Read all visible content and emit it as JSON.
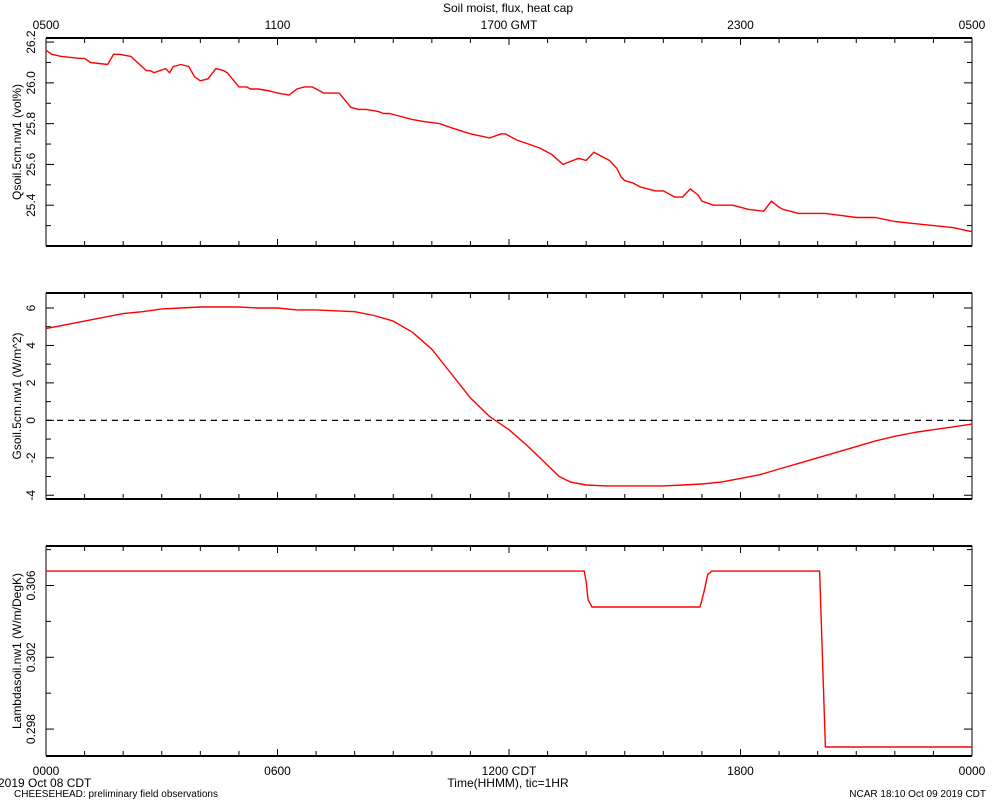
{
  "title": "Soil moist, flux, heat cap",
  "top_axis": {
    "tick_labels": [
      "0500",
      "1100",
      "1700 GMT",
      "2300",
      "0500"
    ]
  },
  "bottom_axis": {
    "tick_labels": [
      "0000",
      "0600",
      "1200 CDT",
      "1800",
      "0000"
    ],
    "xlabel": "Time(HHMM), tic=1HR"
  },
  "footer": {
    "date_left": "2019 Oct 08 CDT",
    "project": "CHEESEHEAD: preliminary field observations",
    "stamp": "NCAR 18:10 Oct 09 2019 CDT"
  },
  "colors": {
    "series": "#ff0000",
    "axis": "#000000",
    "zero_line": "#000000"
  },
  "chart_data": [
    {
      "type": "line",
      "ylabel": "Qsoil.5cm.nw1 (vol%)",
      "ylim": [
        25.2,
        26.22
      ],
      "yticks": [
        25.4,
        25.6,
        25.8,
        26.0,
        26.2
      ],
      "ytick_labels": [
        "25.4",
        "25.6",
        "25.8",
        "26.0",
        "26.2"
      ],
      "xlim_hours": [
        0,
        24
      ],
      "series": [
        {
          "x": [
            0,
            0.15,
            0.4,
            0.9,
            1.0,
            1.15,
            1.6,
            1.75,
            1.9,
            2.2,
            2.6,
            2.7,
            2.8,
            3.1,
            3.2,
            3.3,
            3.5,
            3.7,
            3.85,
            4.0,
            4.2,
            4.4,
            4.6,
            4.7,
            5.0,
            5.2,
            5.3,
            5.4,
            5.5,
            5.8,
            6.0,
            6.3,
            6.5,
            6.7,
            6.9,
            7.2,
            7.6,
            7.9,
            8.1,
            8.3,
            8.6,
            8.75,
            8.9,
            9.1,
            9.5,
            9.8,
            10.2,
            10.5,
            11.0,
            11.5,
            11.8,
            11.9,
            12.2,
            12.5,
            12.8,
            13.1,
            13.4,
            13.8,
            14.0,
            14.2,
            14.6,
            14.8,
            14.9,
            15.0,
            15.2,
            15.4,
            15.6,
            15.8,
            16.0,
            16.3,
            16.5,
            16.7,
            16.9,
            17.0,
            17.3,
            17.8,
            18.2,
            18.6,
            18.8,
            19.0,
            19.1,
            19.3,
            19.5,
            19.8,
            20.2,
            20.6,
            21.0,
            21.5,
            22.0,
            22.5,
            23.0,
            23.5,
            24.0
          ],
          "y": [
            26.16,
            26.14,
            26.13,
            26.12,
            26.12,
            26.1,
            26.09,
            26.14,
            26.14,
            26.13,
            26.06,
            26.06,
            26.05,
            26.07,
            26.05,
            26.08,
            26.09,
            26.08,
            26.03,
            26.01,
            26.02,
            26.07,
            26.06,
            26.05,
            25.98,
            25.98,
            25.97,
            25.97,
            25.97,
            25.96,
            25.95,
            25.94,
            25.97,
            25.98,
            25.98,
            25.95,
            25.95,
            25.88,
            25.87,
            25.87,
            25.86,
            25.85,
            25.85,
            25.84,
            25.82,
            25.81,
            25.8,
            25.78,
            25.75,
            25.73,
            25.75,
            25.75,
            25.72,
            25.7,
            25.68,
            25.65,
            25.6,
            25.63,
            25.62,
            25.66,
            25.62,
            25.58,
            25.54,
            25.52,
            25.51,
            25.49,
            25.48,
            25.47,
            25.47,
            25.44,
            25.44,
            25.48,
            25.45,
            25.42,
            25.4,
            25.4,
            25.38,
            25.37,
            25.42,
            25.39,
            25.38,
            25.37,
            25.36,
            25.36,
            25.36,
            25.35,
            25.34,
            25.34,
            25.32,
            25.31,
            25.3,
            25.29,
            25.27
          ]
        }
      ]
    },
    {
      "type": "line",
      "ylabel": "Gsoil.5cm.nw1 (W/m^2)",
      "ylim": [
        -4.2,
        6.8
      ],
      "yticks": [
        -4,
        -2,
        0,
        2,
        4,
        6
      ],
      "ytick_labels": [
        "-4",
        "-2",
        "0",
        "2",
        "4",
        "6"
      ],
      "reference_line": {
        "y": 0,
        "style": "dashed"
      },
      "xlim_hours": [
        0,
        24
      ],
      "series": [
        {
          "x": [
            0,
            0.5,
            1.0,
            1.5,
            2.0,
            2.5,
            3.0,
            3.5,
            4.0,
            4.5,
            5.0,
            5.5,
            6.0,
            6.5,
            7.0,
            7.5,
            8.0,
            8.5,
            9.0,
            9.5,
            10.0,
            10.5,
            11.0,
            11.5,
            12.0,
            12.5,
            13.0,
            13.3,
            13.6,
            14.0,
            14.5,
            15.0,
            15.5,
            16.0,
            16.5,
            17.0,
            17.5,
            18.0,
            18.5,
            19.0,
            19.5,
            20.0,
            20.5,
            21.0,
            21.5,
            22.0,
            22.5,
            23.0,
            23.5,
            24.0
          ],
          "y": [
            4.9,
            5.1,
            5.3,
            5.5,
            5.7,
            5.8,
            5.95,
            6.0,
            6.05,
            6.05,
            6.05,
            6.0,
            6.0,
            5.9,
            5.9,
            5.85,
            5.8,
            5.6,
            5.3,
            4.7,
            3.8,
            2.5,
            1.2,
            0.2,
            -0.5,
            -1.4,
            -2.4,
            -3.0,
            -3.3,
            -3.45,
            -3.5,
            -3.5,
            -3.5,
            -3.5,
            -3.45,
            -3.4,
            -3.3,
            -3.1,
            -2.9,
            -2.6,
            -2.3,
            -2.0,
            -1.7,
            -1.4,
            -1.1,
            -0.85,
            -0.65,
            -0.5,
            -0.35,
            -0.2
          ]
        }
      ]
    },
    {
      "type": "line",
      "ylabel": "Lambdasoil.nw1 (W/m/DegK)",
      "ylim": [
        0.2965,
        0.3082
      ],
      "yticks": [
        0.298,
        0.302,
        0.306
      ],
      "ytick_labels": [
        "0.298",
        "0.302",
        "0.306"
      ],
      "xlim_hours": [
        0,
        24
      ],
      "series": [
        {
          "x": [
            0,
            13.95,
            14.0,
            14.05,
            14.15,
            15.0,
            16.0,
            16.95,
            17.05,
            17.15,
            17.25,
            18.0,
            19.0,
            20.0,
            20.05,
            20.2,
            21.0,
            22.0,
            23.0,
            24.0
          ],
          "y": [
            0.3068,
            0.3068,
            0.3062,
            0.3052,
            0.3048,
            0.3048,
            0.3048,
            0.3048,
            0.3056,
            0.3066,
            0.3068,
            0.3068,
            0.3068,
            0.3068,
            0.3068,
            0.297,
            0.297,
            0.297,
            0.297,
            0.297
          ]
        }
      ]
    }
  ]
}
